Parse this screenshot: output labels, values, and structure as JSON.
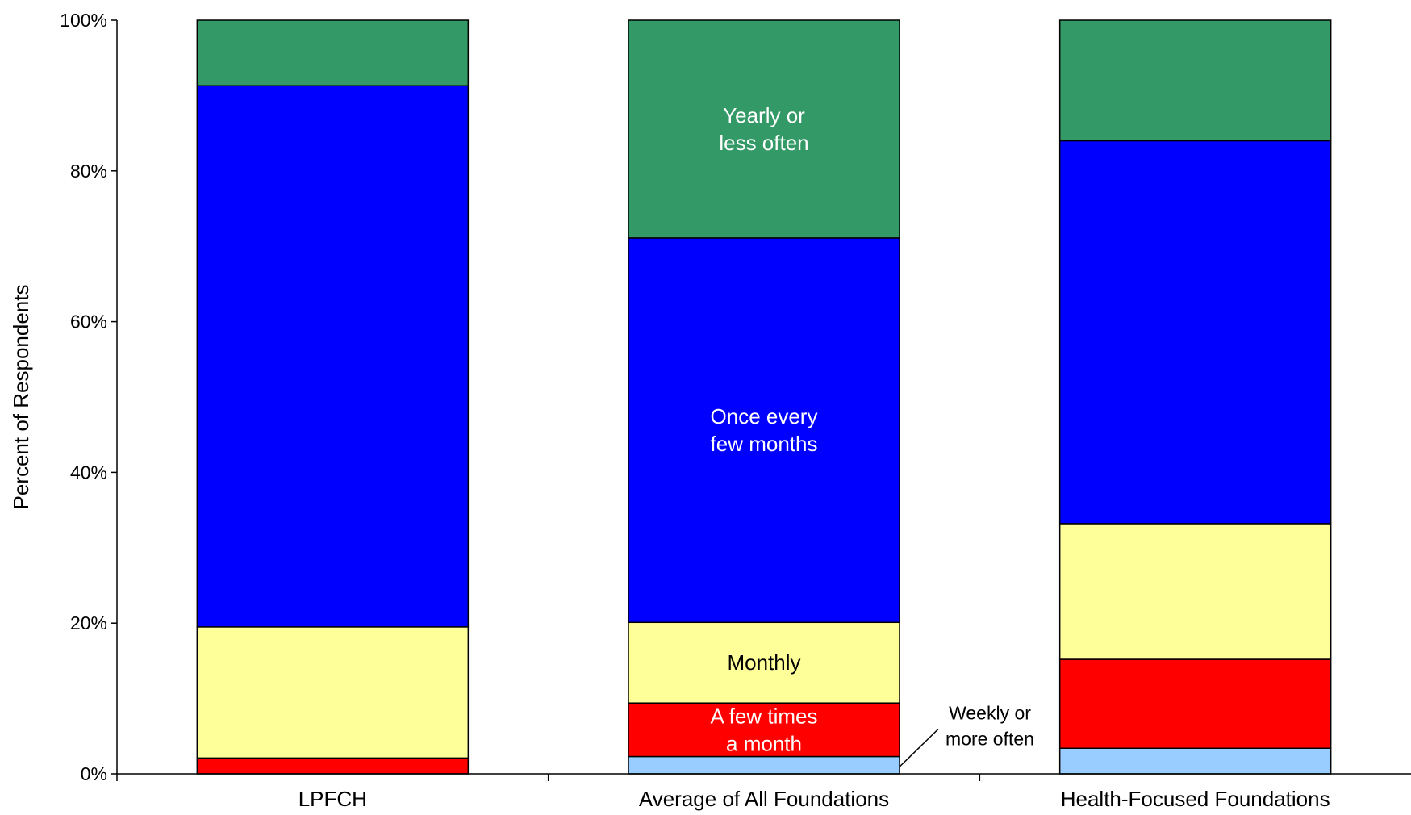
{
  "chart_data": {
    "type": "bar",
    "stacked": true,
    "title": "",
    "xlabel": "",
    "ylabel": "Percent of Respondents",
    "ylim": [
      0,
      100
    ],
    "yticks": [
      "0%",
      "20%",
      "40%",
      "60%",
      "80%",
      "100%"
    ],
    "categories": [
      "LPFCH",
      "Average of All Foundations",
      "Health-Focused Foundations"
    ],
    "series": [
      {
        "name": "Weekly or more often",
        "color": "#99ccff",
        "values": [
          0,
          2.3,
          3.4
        ]
      },
      {
        "name": "A few times a month",
        "color": "#ff0000",
        "values": [
          2.1,
          7.1,
          11.8
        ]
      },
      {
        "name": "Monthly",
        "color": "#ffff99",
        "values": [
          17.4,
          10.7,
          18.0
        ]
      },
      {
        "name": "Once every few months",
        "color": "#0000ff",
        "values": [
          71.8,
          51.0,
          50.8
        ]
      },
      {
        "name": "Yearly or less often",
        "color": "#339966",
        "values": [
          8.7,
          28.9,
          16.0
        ]
      }
    ],
    "annotations": [
      {
        "category": "Average of All Foundations",
        "series": "Yearly or less often",
        "lines": [
          "Yearly or",
          "less often"
        ],
        "color": "#ffffff"
      },
      {
        "category": "Average of All Foundations",
        "series": "Once every few months",
        "lines": [
          "Once every",
          "few months"
        ],
        "color": "#ffffff"
      },
      {
        "category": "Average of All Foundations",
        "series": "Monthly",
        "lines": [
          "Monthly"
        ],
        "color": "#000000"
      },
      {
        "category": "Average of All Foundations",
        "series": "A few times a month",
        "lines": [
          "A few times",
          "a month"
        ],
        "color": "#ffffff"
      },
      {
        "category": "Average of All Foundations",
        "series": "Weekly or more often",
        "lines": [
          "Weekly or",
          "more often"
        ],
        "color": "#000000",
        "callout": true
      }
    ]
  }
}
